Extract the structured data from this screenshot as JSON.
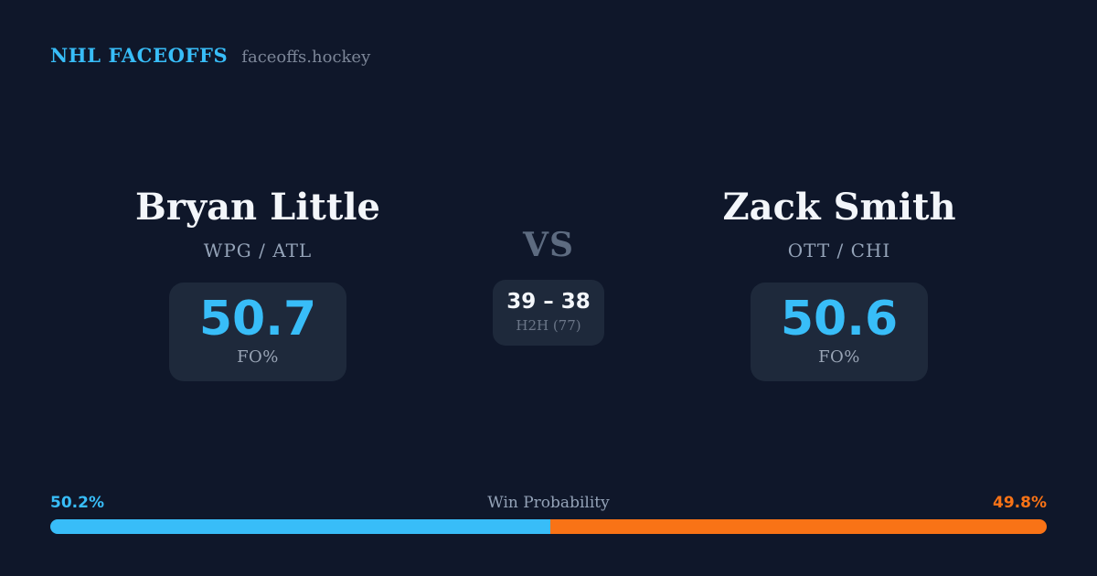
{
  "brand": {
    "title": "NHL FACEOFFS",
    "domain": "faceoffs.hockey"
  },
  "left_player": {
    "name": "Bryan Little",
    "teams": "WPG / ATL",
    "fo_value": "50.7",
    "fo_label": "FO%"
  },
  "right_player": {
    "name": "Zack Smith",
    "teams": "OTT / CHI",
    "fo_value": "50.6",
    "fo_label": "FO%"
  },
  "center": {
    "vs_label": "VS",
    "h2h_score": "39 – 38",
    "h2h_label": "H2H (77)"
  },
  "win_probability": {
    "title": "Win Probability",
    "left_pct_text": "50.2%",
    "right_pct_text": "49.8%",
    "left_value": 50.2,
    "right_value": 49.8
  },
  "colors": {
    "background": "#0f172a",
    "card": "#1e293b",
    "accent_blue": "#38bdf8",
    "accent_orange": "#f97316",
    "text_white": "#f3f6fa",
    "text_slate": "#94a3b8",
    "text_muted": "#5d6b80"
  }
}
